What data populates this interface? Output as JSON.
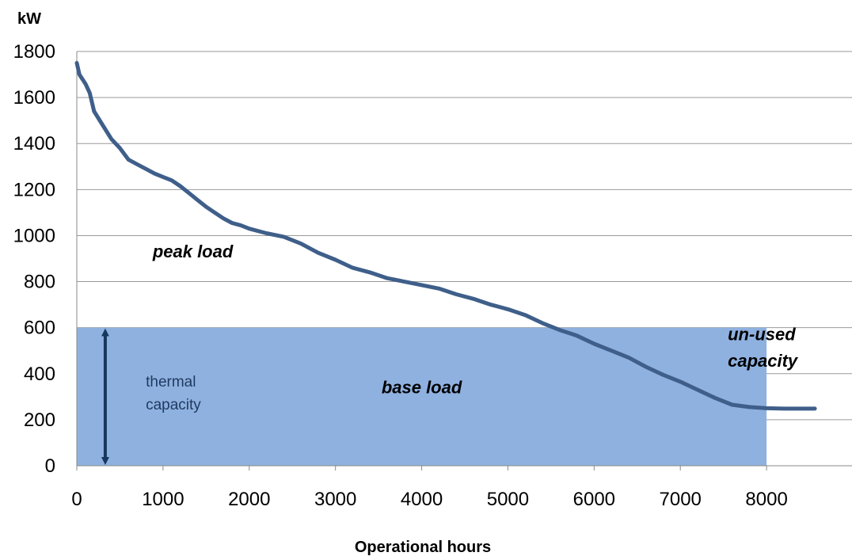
{
  "chart_data": {
    "type": "line",
    "title": "",
    "ylabel": "kW",
    "xlabel": "Operational hours",
    "xlim": [
      0,
      9000
    ],
    "ylim": [
      0,
      1800
    ],
    "x_ticks": [
      0,
      1000,
      2000,
      3000,
      4000,
      5000,
      6000,
      7000,
      8000
    ],
    "y_ticks": [
      0,
      200,
      400,
      600,
      800,
      1000,
      1200,
      1400,
      1600,
      1800
    ],
    "grid": {
      "horizontal": true,
      "vertical": false
    },
    "legend": "none",
    "series": [
      {
        "color": "#3f5f8a",
        "x": [
          0,
          30,
          100,
          150,
          200,
          300,
          400,
          500,
          600,
          700,
          800,
          900,
          1000,
          1100,
          1200,
          1300,
          1400,
          1500,
          1600,
          1700,
          1800,
          1900,
          2000,
          2200,
          2400,
          2600,
          2800,
          3000,
          3200,
          3400,
          3600,
          3800,
          4000,
          4200,
          4400,
          4600,
          4800,
          5000,
          5200,
          5400,
          5600,
          5800,
          6000,
          6200,
          6400,
          6600,
          6800,
          7000,
          7200,
          7400,
          7600,
          7800,
          8000,
          8200,
          8400,
          8560
        ],
        "values": [
          1750,
          1700,
          1660,
          1620,
          1540,
          1480,
          1420,
          1380,
          1330,
          1310,
          1290,
          1270,
          1255,
          1240,
          1215,
          1185,
          1155,
          1125,
          1100,
          1075,
          1055,
          1045,
          1030,
          1010,
          995,
          965,
          925,
          895,
          860,
          840,
          815,
          800,
          785,
          770,
          745,
          725,
          700,
          680,
          655,
          620,
          590,
          565,
          530,
          500,
          470,
          430,
          395,
          365,
          330,
          295,
          265,
          255,
          250,
          248,
          248,
          248
        ]
      }
    ],
    "regions": [
      {
        "label": "base load",
        "x_range": [
          0,
          8000
        ],
        "y_range": [
          0,
          600
        ],
        "color": "#8fb1e0"
      }
    ],
    "annotations": [
      {
        "text": "peak load",
        "x": 880,
        "y": 905
      },
      {
        "text": "base load",
        "x": 4000,
        "y": 315
      },
      {
        "text": "un-used",
        "x": 7550,
        "y": 545
      },
      {
        "text": "capacity",
        "x": 7550,
        "y": 430
      },
      {
        "text": "thermal",
        "x": 800,
        "y": 345
      },
      {
        "text": "capacity",
        "x": 800,
        "y": 245
      }
    ],
    "arrow": {
      "x": 330,
      "y_range": [
        0,
        600
      ],
      "color": "#17375e"
    }
  }
}
